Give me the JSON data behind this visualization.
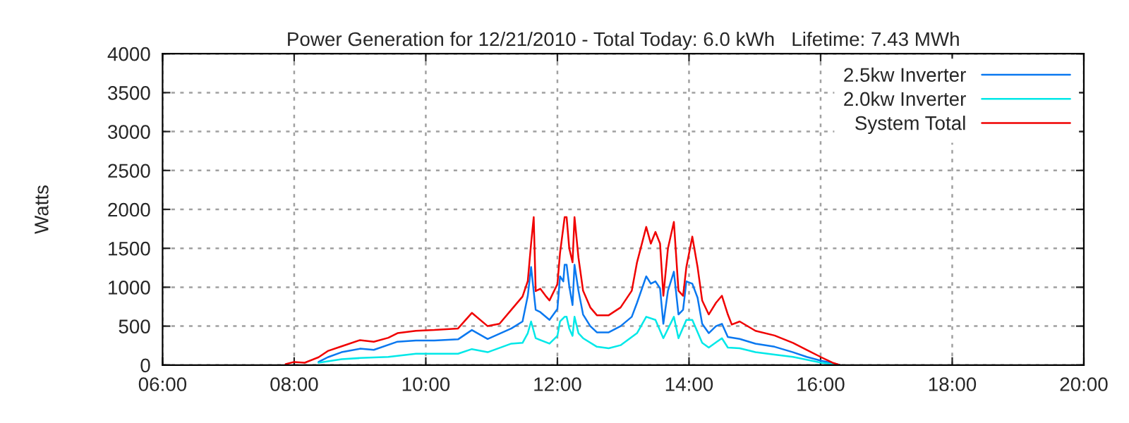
{
  "chart_data": {
    "type": "line",
    "title": "Power Generation for 12/21/2010 - Total Today: 6.0 kWh   Lifetime: 7.43 MWh",
    "ylabel": "Watts",
    "xlim": [
      6,
      20
    ],
    "xticks": [
      {
        "value": 6,
        "label": "06:00"
      },
      {
        "value": 8,
        "label": "08:00"
      },
      {
        "value": 10,
        "label": "10:00"
      },
      {
        "value": 12,
        "label": "12:00"
      },
      {
        "value": 14,
        "label": "14:00"
      },
      {
        "value": 16,
        "label": "16:00"
      },
      {
        "value": 18,
        "label": "18:00"
      },
      {
        "value": 20,
        "label": "20:00"
      }
    ],
    "ylim": [
      0,
      4000
    ],
    "yticks": [
      0,
      500,
      1000,
      1500,
      2000,
      2500,
      3000,
      3500,
      4000
    ],
    "grid": true,
    "legend": "top right",
    "line_style": "solid",
    "marker": "none",
    "series": [
      {
        "name": "2.5kw Inverter",
        "color": "#0a78f0",
        "x": [
          8.37,
          8.51,
          8.72,
          9.0,
          9.21,
          9.57,
          9.85,
          10.13,
          10.49,
          10.7,
          10.94,
          11.3,
          11.47,
          11.55,
          11.6,
          11.67,
          11.74,
          11.88,
          12.0,
          12.04,
          12.09,
          12.11,
          12.14,
          12.18,
          12.23,
          12.26,
          12.32,
          12.39,
          12.5,
          12.6,
          12.78,
          12.96,
          13.13,
          13.21,
          13.35,
          13.42,
          13.49,
          13.56,
          13.61,
          13.68,
          13.77,
          13.84,
          13.91,
          13.96,
          14.05,
          14.13,
          14.2,
          14.3,
          14.41,
          14.5,
          14.59,
          14.77,
          15.01,
          15.3,
          15.58,
          15.79,
          16.01,
          16.18,
          16.29
        ],
        "values": [
          40,
          100,
          165,
          210,
          195,
          300,
          315,
          315,
          330,
          450,
          335,
          470,
          560,
          890,
          1260,
          710,
          680,
          580,
          720,
          1140,
          1075,
          1290,
          1290,
          1015,
          770,
          1290,
          955,
          650,
          500,
          420,
          420,
          500,
          620,
          800,
          1140,
          1045,
          1075,
          985,
          530,
          955,
          1200,
          650,
          710,
          1075,
          1045,
          865,
          530,
          410,
          500,
          530,
          360,
          335,
          275,
          235,
          165,
          105,
          55,
          25,
          0
        ]
      },
      {
        "name": "2.0kw Inverter",
        "color": "#00e8e8",
        "x": [
          8.37,
          8.72,
          9.0,
          9.43,
          9.85,
          10.49,
          10.7,
          10.94,
          11.3,
          11.47,
          11.55,
          11.6,
          11.67,
          11.88,
          12.0,
          12.04,
          12.11,
          12.14,
          12.18,
          12.23,
          12.26,
          12.32,
          12.39,
          12.6,
          12.78,
          12.96,
          13.21,
          13.35,
          13.49,
          13.61,
          13.77,
          13.84,
          13.96,
          14.05,
          14.2,
          14.3,
          14.5,
          14.59,
          14.77,
          15.01,
          15.3,
          15.58,
          16.01,
          16.29
        ],
        "values": [
          30,
          75,
          90,
          105,
          145,
          145,
          205,
          165,
          275,
          285,
          410,
          560,
          345,
          275,
          375,
          560,
          620,
          620,
          470,
          375,
          620,
          410,
          345,
          235,
          215,
          255,
          410,
          620,
          580,
          345,
          620,
          345,
          580,
          580,
          285,
          225,
          345,
          225,
          215,
          165,
          135,
          105,
          30,
          0
        ]
      },
      {
        "name": "System Total",
        "color": "#f00000",
        "x": [
          7.87,
          8.0,
          8.16,
          8.37,
          8.51,
          8.72,
          9.0,
          9.21,
          9.43,
          9.57,
          9.85,
          10.13,
          10.49,
          10.7,
          10.94,
          11.12,
          11.3,
          11.47,
          11.55,
          11.6,
          11.64,
          11.67,
          11.74,
          11.83,
          11.88,
          12.0,
          12.04,
          12.11,
          12.14,
          12.18,
          12.23,
          12.26,
          12.32,
          12.39,
          12.5,
          12.6,
          12.78,
          12.96,
          13.13,
          13.21,
          13.35,
          13.42,
          13.49,
          13.56,
          13.61,
          13.68,
          13.77,
          13.84,
          13.91,
          13.96,
          14.05,
          14.13,
          14.2,
          14.3,
          14.41,
          14.5,
          14.59,
          14.65,
          14.77,
          15.01,
          15.3,
          15.58,
          15.79,
          16.01,
          16.18,
          16.29
        ],
        "values": [
          12,
          40,
          30,
          100,
          180,
          240,
          320,
          300,
          350,
          410,
          440,
          450,
          470,
          670,
          500,
          530,
          710,
          880,
          1080,
          1560,
          1900,
          950,
          980,
          880,
          830,
          1040,
          1440,
          1900,
          1900,
          1500,
          1320,
          1900,
          1380,
          955,
          740,
          640,
          640,
          740,
          955,
          1320,
          1775,
          1560,
          1710,
          1560,
          890,
          1500,
          1840,
          955,
          890,
          1260,
          1650,
          1260,
          830,
          650,
          800,
          890,
          650,
          520,
          560,
          440,
          380,
          285,
          195,
          100,
          30,
          0
        ]
      }
    ]
  }
}
